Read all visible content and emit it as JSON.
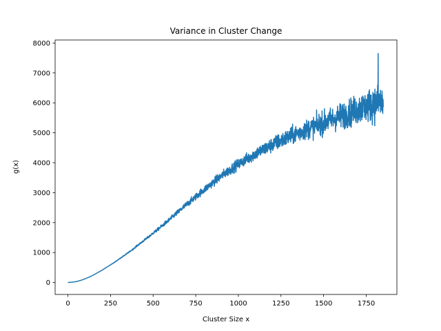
{
  "chart_data": {
    "type": "line",
    "title": "Variance in Cluster Change",
    "xlabel": "Cluster Size x",
    "ylabel": "g(x)",
    "xlim": [
      -75,
      1930
    ],
    "ylim": [
      -400,
      8100
    ],
    "xticks": [
      0,
      250,
      500,
      750,
      1000,
      1250,
      1500,
      1750
    ],
    "xtick_labels": [
      "0",
      "250",
      "500",
      "750",
      "1000",
      "1250",
      "1500",
      "1750"
    ],
    "yticks": [
      0,
      1000,
      2000,
      3000,
      4000,
      5000,
      6000,
      7000,
      8000
    ],
    "ytick_labels": [
      "0",
      "1000",
      "2000",
      "3000",
      "4000",
      "5000",
      "6000",
      "7000",
      "8000"
    ],
    "grid": false,
    "legend": "none",
    "color": "#1f77b4",
    "series": [
      {
        "x_range": [
          0,
          1850
        ],
        "x": [
          0,
          25,
          50,
          75,
          100,
          125,
          150,
          175,
          200,
          225,
          250,
          275,
          300,
          325,
          350,
          375,
          400,
          425,
          450,
          475,
          500,
          525,
          550,
          575,
          600,
          625,
          650,
          675,
          700,
          725,
          750,
          775,
          800,
          825,
          850,
          875,
          900,
          925,
          950,
          975,
          1000,
          1025,
          1050,
          1075,
          1100,
          1125,
          1150,
          1175,
          1200,
          1225,
          1250,
          1275,
          1300,
          1325,
          1350,
          1375,
          1400,
          1425,
          1450,
          1475,
          1500,
          1525,
          1550,
          1575,
          1600,
          1625,
          1650,
          1675,
          1700,
          1725,
          1750,
          1775,
          1800,
          1825,
          1850
        ],
        "trend_values": [
          0,
          10,
          30,
          70,
          120,
          180,
          250,
          330,
          410,
          500,
          590,
          680,
          780,
          880,
          980,
          1080,
          1200,
          1310,
          1420,
          1530,
          1650,
          1760,
          1880,
          2000,
          2120,
          2250,
          2370,
          2500,
          2620,
          2740,
          2860,
          2990,
          3100,
          3220,
          3330,
          3450,
          3560,
          3660,
          3760,
          3860,
          3950,
          4040,
          4130,
          4210,
          4300,
          4380,
          4450,
          4520,
          4600,
          4670,
          4740,
          4800,
          4870,
          4930,
          4990,
          5050,
          5110,
          5170,
          5220,
          5280,
          5330,
          5390,
          5440,
          5500,
          5560,
          5610,
          5660,
          5720,
          5780,
          5840,
          5880,
          5930,
          5960,
          5990,
          6000
        ],
        "noise_amplitude": [
          0,
          0,
          0,
          0,
          0,
          0,
          0,
          0,
          5,
          5,
          10,
          10,
          15,
          20,
          25,
          30,
          40,
          45,
          50,
          60,
          70,
          80,
          90,
          100,
          110,
          120,
          130,
          140,
          150,
          160,
          170,
          180,
          190,
          200,
          210,
          220,
          230,
          240,
          250,
          260,
          270,
          280,
          290,
          300,
          320,
          330,
          340,
          360,
          380,
          400,
          410,
          420,
          430,
          450,
          460,
          480,
          500,
          520,
          540,
          560,
          580,
          600,
          620,
          640,
          660,
          680,
          700,
          720,
          750,
          780,
          800,
          850,
          900,
          950,
          980
        ]
      }
    ],
    "peak": {
      "x": 1820,
      "y": 7650
    }
  }
}
